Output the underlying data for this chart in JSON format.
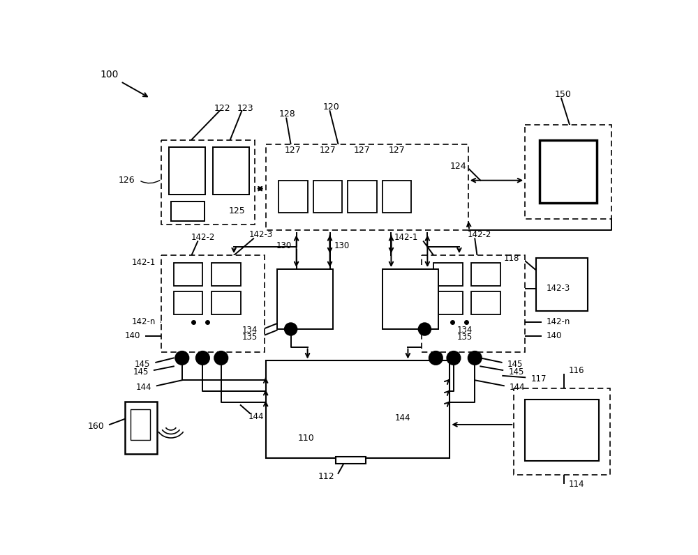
{
  "bg": "#ffffff",
  "fw": 10.0,
  "fh": 7.96
}
